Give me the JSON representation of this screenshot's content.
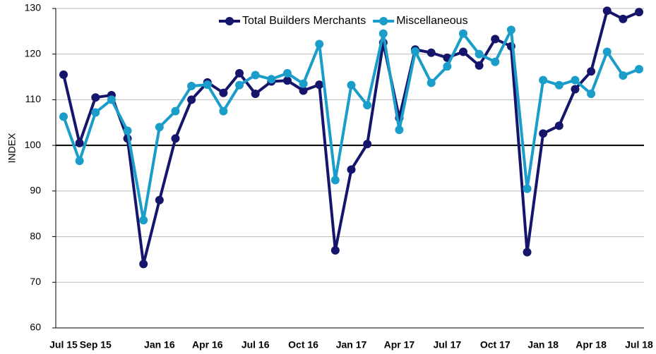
{
  "chart_data": {
    "type": "line",
    "ylabel": "INDEX",
    "categories": [
      "Jul 15",
      null,
      "Sep 15",
      null,
      null,
      null,
      "Jan 16",
      null,
      null,
      "Apr 16",
      null,
      null,
      "Jul 16",
      null,
      null,
      "Oct 16",
      null,
      null,
      "Jan 17",
      null,
      null,
      "Apr 17",
      null,
      null,
      "Jul 17",
      null,
      null,
      "Oct 17",
      null,
      null,
      "Jan 18",
      null,
      null,
      "Apr 18",
      null,
      null,
      "Jul 18"
    ],
    "series": [
      {
        "name": "Total Builders Merchants",
        "color": "#15166b",
        "values": [
          115.5,
          100.5,
          110.5,
          111,
          101.5,
          74,
          88,
          101.5,
          110,
          113.8,
          111.5,
          115.8,
          111.3,
          114,
          114.2,
          112,
          113.3,
          77,
          94.7,
          100.3,
          122.5,
          106,
          121,
          120.3,
          119.2,
          120.5,
          117.5,
          123.3,
          121.7,
          76.6,
          102.6,
          104.3,
          112.3,
          116.2,
          129.5,
          127.7,
          129.2
        ]
      },
      {
        "name": "Miscellaneous",
        "color": "#1a9dc9",
        "values": [
          106.3,
          96.6,
          107.2,
          110,
          103.2,
          83.6,
          104,
          107.5,
          113,
          113.3,
          107.5,
          113.2,
          115.4,
          114.5,
          115.8,
          113.5,
          122.2,
          92.4,
          113.2,
          108.8,
          124.5,
          103.4,
          120.6,
          113.7,
          117.3,
          124.5,
          120,
          118.3,
          125.3,
          90.5,
          114.3,
          113.2,
          114.3,
          111.3,
          120.5,
          115.3,
          116.7
        ]
      }
    ],
    "ylim": [
      60,
      130
    ],
    "yticks": [
      60,
      70,
      80,
      90,
      100,
      110,
      120,
      130
    ],
    "reference_line": 100,
    "grid": true,
    "legend": "top"
  }
}
